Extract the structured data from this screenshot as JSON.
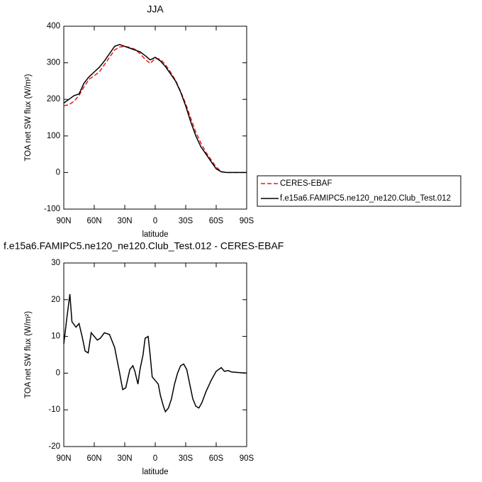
{
  "chart_data": [
    {
      "type": "line",
      "title": "JJA",
      "xlabel": "latitude",
      "ylabel": "TOA net SW flux (W/m²)",
      "x": [
        90,
        85,
        80,
        75,
        70,
        65,
        60,
        55,
        50,
        45,
        40,
        35,
        30,
        25,
        20,
        15,
        10,
        5,
        0,
        -5,
        -10,
        -15,
        -20,
        -25,
        -30,
        -35,
        -40,
        -45,
        -50,
        -55,
        -60,
        -65,
        -70,
        -75,
        -80,
        -85,
        -90
      ],
      "series": [
        {
          "name": "CERES-EBAF",
          "color": "#e41a1c",
          "dash": "dashed",
          "values": [
            183,
            185,
            195,
            210,
            235,
            255,
            265,
            275,
            295,
            315,
            335,
            343,
            345,
            342,
            337,
            325,
            310,
            298,
            312,
            310,
            295,
            275,
            252,
            222,
            188,
            148,
            110,
            80,
            55,
            35,
            15,
            3,
            0,
            0,
            0,
            0,
            0
          ]
        },
        {
          "name": "f.e15a6.FAMIPC5.ne120_ne120.Club_Test.012",
          "color": "#000000",
          "dash": "solid",
          "values": [
            190,
            200,
            210,
            215,
            245,
            262,
            275,
            288,
            305,
            325,
            345,
            350,
            345,
            340,
            335,
            330,
            320,
            308,
            315,
            305,
            290,
            270,
            250,
            220,
            182,
            138,
            100,
            70,
            50,
            30,
            10,
            2,
            0,
            0,
            0,
            0,
            0
          ]
        }
      ],
      "xlim": [
        90,
        -90
      ],
      "xticks": [
        {
          "value": 90,
          "label": "90N"
        },
        {
          "value": 60,
          "label": "60N"
        },
        {
          "value": 30,
          "label": "30N"
        },
        0,
        {
          "value": -30,
          "label": "30S"
        },
        {
          "value": -60,
          "label": "60S"
        },
        {
          "value": -90,
          "label": "90S"
        }
      ],
      "ylim": [
        -100,
        400
      ],
      "yticks": [
        -100,
        0,
        100,
        200,
        300,
        400
      ],
      "legend": "right"
    },
    {
      "type": "line",
      "title": "f.e15a6.FAMIPC5.ne120_ne120.Club_Test.012 - CERES-EBAF",
      "xlabel": "latitude",
      "ylabel": "TOA net SW flux (W/m²)",
      "x": [
        90,
        87,
        84,
        82,
        78,
        75,
        72,
        69,
        66,
        63,
        60,
        57,
        54,
        50,
        45,
        40,
        35,
        32,
        29,
        25,
        22,
        20,
        17,
        15,
        12,
        10,
        7,
        5,
        3,
        0,
        -3,
        -5,
        -8,
        -10,
        -13,
        -16,
        -19,
        -22,
        -25,
        -28,
        -31,
        -34,
        -37,
        -40,
        -43,
        -46,
        -50,
        -55,
        -60,
        -65,
        -68,
        -72,
        -75,
        -80,
        -85,
        -90
      ],
      "series": [
        {
          "color": "#000000",
          "dash": "solid",
          "values": [
            8,
            15,
            21.5,
            14,
            12.5,
            13.5,
            10,
            6,
            5.5,
            11,
            10,
            9,
            9.5,
            11,
            10.5,
            7,
            0,
            -4.5,
            -4,
            1,
            2,
            0.5,
            -3,
            1,
            5,
            9.5,
            10,
            5,
            -1,
            -2,
            -3,
            -6,
            -9,
            -10.5,
            -9.5,
            -7,
            -3,
            0,
            2,
            2.5,
            1,
            -3,
            -7,
            -9,
            -9.5,
            -8,
            -5,
            -2,
            0.5,
            1.5,
            0.5,
            0.7,
            0.3,
            0.2,
            0.1,
            0
          ]
        }
      ],
      "xlim": [
        90,
        -90
      ],
      "xticks": [
        {
          "value": 90,
          "label": "90N"
        },
        {
          "value": 60,
          "label": "60N"
        },
        {
          "value": 30,
          "label": "30N"
        },
        0,
        {
          "value": -30,
          "label": "30S"
        },
        {
          "value": -60,
          "label": "60S"
        },
        {
          "value": -90,
          "label": "90S"
        }
      ],
      "ylim": [
        -20,
        30
      ],
      "yticks": [
        -20,
        -10,
        0,
        10,
        20,
        30
      ]
    }
  ]
}
